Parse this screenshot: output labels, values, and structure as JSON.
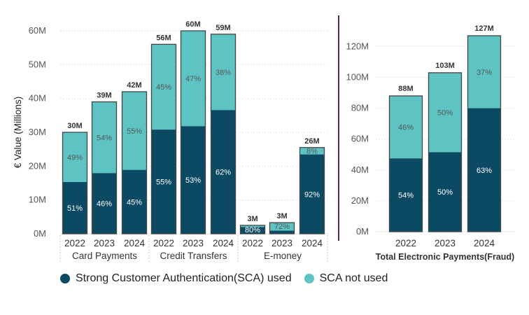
{
  "colors": {
    "sca_used": "#0c4a64",
    "sca_not_used": "#5ec4c3",
    "bar_border": "#444444",
    "grid": "#e6e6e6",
    "divider": "#4b2a5e"
  },
  "legend": {
    "items": [
      {
        "label": "Strong Customer Authentication(SCA) used",
        "color": "#0c4a64"
      },
      {
        "label": "SCA not used",
        "color": "#5ec4c3"
      }
    ]
  },
  "chart_data": [
    {
      "type": "bar",
      "stacked": true,
      "ylabel": "€ Value (Millions)",
      "ylim": [
        0,
        60
      ],
      "yticks": [
        0,
        10,
        20,
        30,
        40,
        50,
        60
      ],
      "ytick_labels": [
        "0M",
        "10M",
        "20M",
        "30M",
        "40M",
        "50M",
        "60M"
      ],
      "groups": [
        "Card Payments",
        "Credit Transfers",
        "E-money"
      ],
      "categories": [
        "2022",
        "2023",
        "2024"
      ],
      "bars": [
        {
          "group": "Card Payments",
          "year": "2022",
          "total": 30,
          "total_label": "30M",
          "used_pct": 51,
          "used_label": "51%",
          "not_label": "49%"
        },
        {
          "group": "Card Payments",
          "year": "2023",
          "total": 39,
          "total_label": "39M",
          "used_pct": 46,
          "used_label": "46%",
          "not_label": "54%"
        },
        {
          "group": "Card Payments",
          "year": "2024",
          "total": 42,
          "total_label": "42M",
          "used_pct": 45,
          "used_label": "45%",
          "not_label": "55%"
        },
        {
          "group": "Credit Transfers",
          "year": "2022",
          "total": 56,
          "total_label": "56M",
          "used_pct": 55,
          "used_label": "55%",
          "not_label": "45%"
        },
        {
          "group": "Credit Transfers",
          "year": "2023",
          "total": 60,
          "total_label": "60M",
          "used_pct": 53,
          "used_label": "53%",
          "not_label": "47%"
        },
        {
          "group": "Credit Transfers",
          "year": "2024",
          "total": 59,
          "total_label": "59M",
          "used_pct": 62,
          "used_label": "62%",
          "not_label": "38%"
        },
        {
          "group": "E-money",
          "year": "2022",
          "total": 2.5,
          "total_label": "3M",
          "used_pct": 80,
          "used_label": "80%",
          "not_label": ""
        },
        {
          "group": "E-money",
          "year": "2023",
          "total": 3.3,
          "total_label": "3M",
          "used_pct": 28,
          "used_label": "",
          "not_label": "72%"
        },
        {
          "group": "E-money",
          "year": "2024",
          "total": 25.5,
          "total_label": "26M",
          "used_pct": 92,
          "used_label": "92%",
          "not_label": "8%"
        }
      ]
    },
    {
      "type": "bar",
      "stacked": true,
      "title": "Total Electronic Payments(Fraud)",
      "ylim": [
        0,
        127
      ],
      "yticks": [
        0,
        20,
        40,
        60,
        80,
        100,
        120
      ],
      "ytick_labels": [
        "0M",
        "20M",
        "40M",
        "60M",
        "80M",
        "100M",
        "120M"
      ],
      "categories": [
        "2022",
        "2023",
        "2024"
      ],
      "bars": [
        {
          "year": "2022",
          "total": 88,
          "total_label": "88M",
          "used_pct": 54,
          "used_label": "54%",
          "not_label": "46%"
        },
        {
          "year": "2023",
          "total": 103,
          "total_label": "103M",
          "used_pct": 50,
          "used_label": "50%",
          "not_label": "50%"
        },
        {
          "year": "2024",
          "total": 127,
          "total_label": "127M",
          "used_pct": 63,
          "used_label": "63%",
          "not_label": "37%"
        }
      ]
    }
  ]
}
